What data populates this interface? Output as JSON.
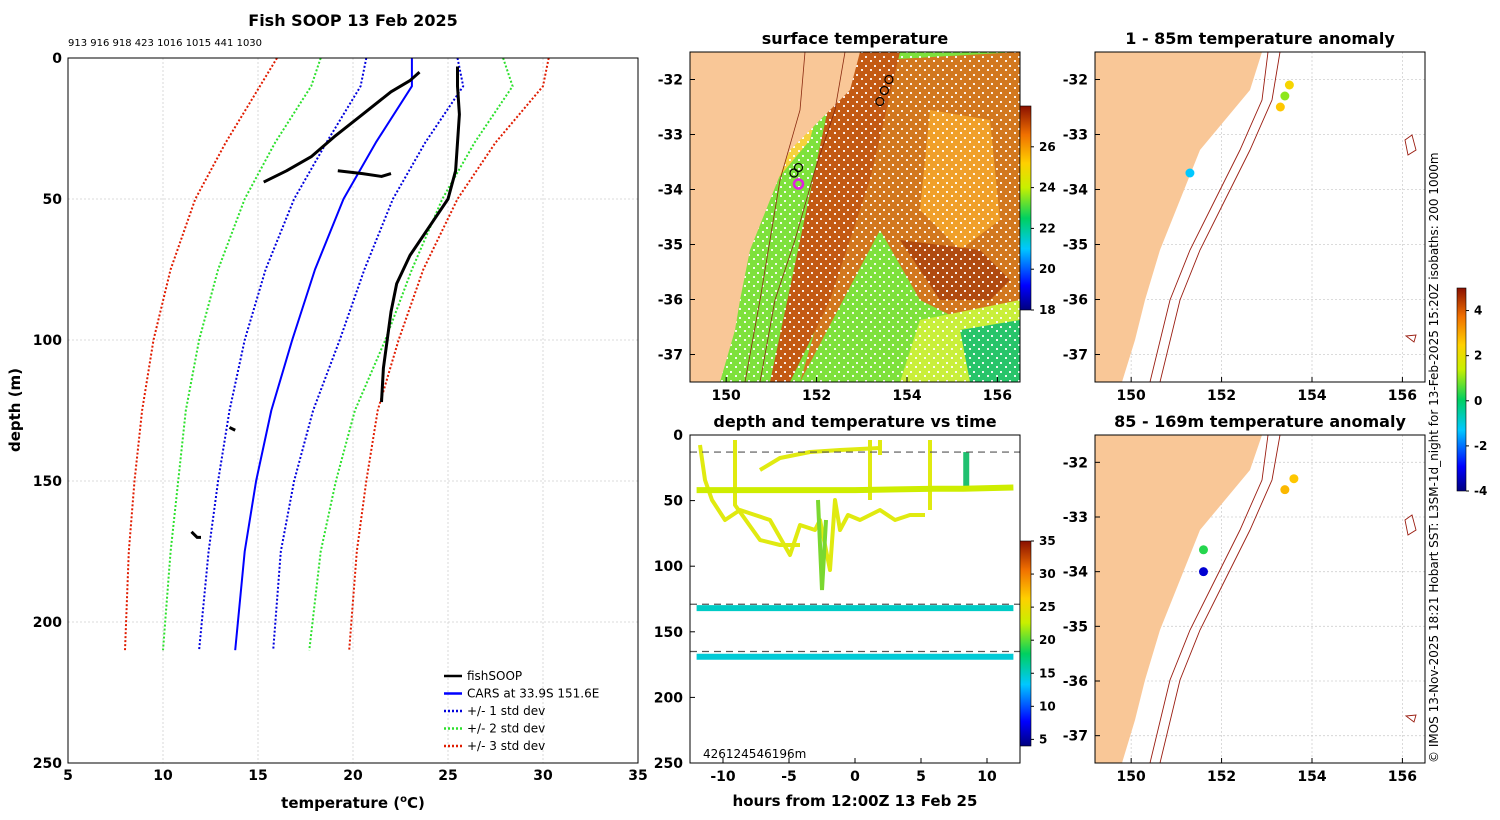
{
  "colors": {
    "land": "#f9c797",
    "fish": "#000000",
    "mean": "#0000ff",
    "sd1": "#0000dd",
    "sd2": "#2ce02c",
    "sd3": "#e01c00",
    "isobath": "#9a1c10"
  },
  "panels": {
    "profile_title": "Fish SOOP 13 Feb 2025",
    "profile_ids": "913 916 918 423 1016 1015 441 1030",
    "sst_title": "surface temperature",
    "time_title": "depth and temperature vs time",
    "anom1_title": "1 - 85m temperature anomaly",
    "anom2_title": "85 - 169m temperature anomaly",
    "side_note": "© IMOS 13-Nov-2025 18:21 Hobart SST: L3SM-1d_night for 13-Feb-2025 15:20Z isobaths: 200  1000m",
    "time_depth_note": "426124546196m"
  },
  "chart_data": [
    {
      "type": "line",
      "title": "Fish SOOP 13 Feb 2025",
      "xlabel": "temperature (°C)",
      "ylabel": "depth (m)",
      "xlim": [
        5,
        35
      ],
      "ylim": [
        250,
        0
      ],
      "xticks": [
        "5",
        "10",
        "15",
        "20",
        "25",
        "30",
        "35"
      ],
      "yticks": [
        "0",
        "50",
        "100",
        "150",
        "200",
        "250"
      ],
      "legend": {
        "position": "bottom-right",
        "entries": [
          {
            "label": "fishSOOP",
            "color": "#000000",
            "style": "solid"
          },
          {
            "label": "CARS at 33.9S 151.6E",
            "color": "#0000ff",
            "style": "solid"
          },
          {
            "label": "+/- 1 std dev",
            "color": "#0000dd",
            "style": "dotted"
          },
          {
            "label": "+/- 2 std dev",
            "color": "#2ce02c",
            "style": "dotted"
          },
          {
            "label": "+/- 3 std dev",
            "color": "#e01c00",
            "style": "dotted"
          }
        ]
      },
      "series": [
        {
          "name": "CARS mean",
          "depth": [
            0,
            10,
            30,
            50,
            75,
            100,
            125,
            150,
            175,
            210
          ],
          "temp": [
            23.1,
            23.1,
            21.2,
            19.5,
            18.0,
            16.8,
            15.7,
            14.9,
            14.3,
            13.8
          ]
        },
        {
          "name": "-1 sd",
          "depth": [
            0,
            10,
            30,
            50,
            75,
            100,
            125,
            150,
            175,
            210
          ],
          "temp": [
            20.7,
            20.4,
            18.6,
            16.9,
            15.4,
            14.3,
            13.5,
            12.9,
            12.4,
            11.9
          ]
        },
        {
          "name": "+1 sd",
          "depth": [
            0,
            10,
            30,
            50,
            75,
            100,
            125,
            150,
            175,
            210
          ],
          "temp": [
            25.5,
            25.8,
            23.8,
            22.1,
            20.6,
            19.3,
            17.9,
            16.9,
            16.2,
            15.8
          ]
        },
        {
          "name": "-2 sd",
          "depth": [
            0,
            10,
            30,
            50,
            75,
            100,
            125,
            150,
            175,
            210
          ],
          "temp": [
            18.3,
            17.8,
            15.9,
            14.3,
            12.9,
            11.9,
            11.2,
            10.8,
            10.4,
            10.0
          ]
        },
        {
          "name": "+2 sd",
          "depth": [
            0,
            10,
            30,
            50,
            75,
            100,
            125,
            150,
            175,
            210
          ],
          "temp": [
            27.9,
            28.4,
            26.4,
            24.7,
            23.1,
            21.7,
            20.1,
            19.1,
            18.3,
            17.7
          ]
        },
        {
          "name": "-3 sd",
          "depth": [
            0,
            10,
            30,
            50,
            75,
            100,
            125,
            150,
            175,
            210
          ],
          "temp": [
            16.0,
            15.1,
            13.3,
            11.7,
            10.4,
            9.5,
            8.9,
            8.5,
            8.2,
            8.0
          ]
        },
        {
          "name": "+3 sd",
          "depth": [
            0,
            10,
            30,
            50,
            75,
            100,
            125,
            150,
            175,
            210
          ],
          "temp": [
            30.3,
            30.0,
            27.5,
            25.5,
            23.7,
            22.4,
            21.3,
            20.7,
            20.2,
            19.8
          ]
        },
        {
          "name": "fishSOOP A",
          "depth": [
            3,
            10,
            20,
            30,
            40,
            50,
            60,
            70,
            80,
            90,
            100,
            110,
            122
          ],
          "temp": [
            25.5,
            25.5,
            25.6,
            25.5,
            25.4,
            25.0,
            24.0,
            23.0,
            22.3,
            22.0,
            21.8,
            21.6,
            21.5
          ]
        },
        {
          "name": "fishSOOP B",
          "depth": [
            5,
            8,
            12,
            20,
            28,
            35,
            40,
            44
          ],
          "temp": [
            23.5,
            23.0,
            22.0,
            20.5,
            19.0,
            17.8,
            16.5,
            15.3
          ]
        },
        {
          "name": "fishSOOP C",
          "depth": [
            40,
            41,
            42,
            41
          ],
          "temp": [
            19.2,
            20.5,
            21.5,
            22.0
          ]
        },
        {
          "name": "fishSOOP D",
          "depth": [
            131,
            132
          ],
          "temp": [
            13.5,
            13.8
          ]
        },
        {
          "name": "fishSOOP E",
          "depth": [
            168,
            170,
            170
          ],
          "temp": [
            11.5,
            11.8,
            12.0
          ]
        }
      ]
    },
    {
      "type": "heatmap",
      "title": "surface temperature",
      "xlim": [
        149.2,
        156.5
      ],
      "ylim": [
        -37.5,
        -31.5
      ],
      "xticks": [
        "150",
        "152",
        "154",
        "156"
      ],
      "yticks": [
        "-32",
        "-33",
        "-34",
        "-35",
        "-36",
        "-37"
      ],
      "colorbar": {
        "range": [
          18,
          28
        ],
        "ticks": [
          "18",
          "20",
          "22",
          "24",
          "26"
        ]
      },
      "markers": [
        {
          "lon": 151.5,
          "lat": -33.7
        },
        {
          "lon": 151.6,
          "lat": -33.6
        },
        {
          "lon": 153.4,
          "lat": -32.4
        },
        {
          "lon": 153.5,
          "lat": -32.2
        },
        {
          "lon": 153.6,
          "lat": -32.0
        },
        {
          "lon": 151.6,
          "lat": -33.9,
          "highlight": true
        }
      ]
    },
    {
      "type": "scatter",
      "title": "depth and temperature vs time",
      "xlabel": "hours from 12:00Z 13 Feb 25",
      "xlim": [
        -12.5,
        12.5
      ],
      "ylim": [
        250,
        0
      ],
      "xticks": [
        "-10",
        "-5",
        "0",
        "5",
        "10"
      ],
      "yticks": [
        "0",
        "50",
        "100",
        "150",
        "200",
        "250"
      ],
      "colorbar": {
        "range": [
          4,
          35
        ],
        "ticks": [
          "5",
          "10",
          "15",
          "20",
          "25",
          "30",
          "35"
        ]
      },
      "reference_depths": [
        13,
        129,
        165
      ],
      "series": [
        {
          "name": "42 m line",
          "hours": [
            -12,
            -6,
            0,
            6,
            8.2,
            12
          ],
          "depth": [
            42,
            42,
            42,
            41,
            41,
            40
          ],
          "temp": 23
        },
        {
          "name": "132 m line",
          "hours": [
            -12,
            0,
            12
          ],
          "depth": [
            132,
            132,
            132
          ],
          "temp": 15
        },
        {
          "name": "169 m line",
          "hours": [
            -12,
            0,
            12
          ],
          "depth": [
            169,
            169,
            169
          ],
          "temp": 14.5
        }
      ]
    },
    {
      "type": "scatter",
      "title": "1 - 85m temperature anomaly",
      "xlim": [
        149.2,
        156.5
      ],
      "ylim": [
        -37.5,
        -31.5
      ],
      "xticks": [
        "150",
        "152",
        "154",
        "156"
      ],
      "yticks": [
        "-32",
        "-33",
        "-34",
        "-35",
        "-36",
        "-37"
      ],
      "colorbar": {
        "range": [
          -4,
          5
        ],
        "ticks": [
          "-4",
          "-2",
          "0",
          "2",
          "4"
        ]
      },
      "points": [
        {
          "lon": 153.5,
          "lat": -32.1,
          "anom": 2.3
        },
        {
          "lon": 153.4,
          "lat": -32.3,
          "anom": 1.0
        },
        {
          "lon": 153.3,
          "lat": -32.5,
          "anom": 2.6
        },
        {
          "lon": 151.3,
          "lat": -33.7,
          "anom": -1.3
        }
      ]
    },
    {
      "type": "scatter",
      "title": "85 - 169m temperature anomaly",
      "xlim": [
        149.2,
        156.5
      ],
      "ylim": [
        -37.5,
        -31.5
      ],
      "xticks": [
        "150",
        "152",
        "154",
        "156"
      ],
      "yticks": [
        "-32",
        "-33",
        "-34",
        "-35",
        "-36",
        "-37"
      ],
      "colorbar": {
        "range": [
          -4,
          5
        ],
        "ticks": [
          "-4",
          "-2",
          "0",
          "2",
          "4"
        ]
      },
      "points": [
        {
          "lon": 153.6,
          "lat": -32.3,
          "anom": 2.6
        },
        {
          "lon": 153.4,
          "lat": -32.5,
          "anom": 2.8
        },
        {
          "lon": 151.6,
          "lat": -33.6,
          "anom": 0.3
        },
        {
          "lon": 151.6,
          "lat": -34.0,
          "anom": -3.3
        }
      ]
    }
  ]
}
